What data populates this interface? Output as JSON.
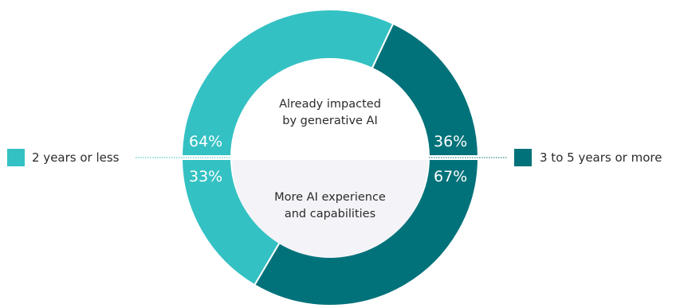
{
  "chart_data": {
    "type": "pie",
    "colors": {
      "short": "#34c1c3",
      "long": "#02727a",
      "lower_center": "#f4f4f8"
    },
    "legend": [
      {
        "label": "2 years or less",
        "color": "#34c1c3"
      },
      {
        "label": "3 to 5 years or more",
        "color": "#02727a"
      }
    ],
    "halves": [
      {
        "label": "Already impacted by generative AI",
        "label_lines": [
          "Already impacted",
          "by generative AI"
        ],
        "values": [
          64,
          36
        ],
        "value_labels": [
          "64%",
          "36%"
        ]
      },
      {
        "label": "More AI experience and capabilities",
        "label_lines": [
          "More AI experience",
          "and capabilities"
        ],
        "values": [
          33,
          67
        ],
        "value_labels": [
          "33%",
          "67%"
        ]
      }
    ]
  }
}
